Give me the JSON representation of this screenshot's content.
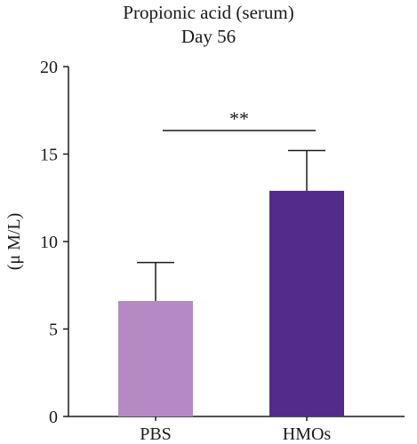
{
  "chart_data": {
    "type": "bar",
    "title": "Propionic acid (serum)",
    "subtitle": "Day 56",
    "xlabel": "",
    "ylabel": "(μ M/L)",
    "ylim": [
      0,
      20
    ],
    "yticks": [
      0,
      5,
      10,
      15,
      20
    ],
    "categories": [
      "PBS",
      "HMOs"
    ],
    "values": [
      6.6,
      12.9
    ],
    "errors": [
      2.2,
      2.3
    ],
    "colors": [
      "#b589c4",
      "#532b88"
    ],
    "significance": {
      "between": [
        "PBS",
        "HMOs"
      ],
      "label": "**"
    },
    "grid": false,
    "legend": "none"
  }
}
